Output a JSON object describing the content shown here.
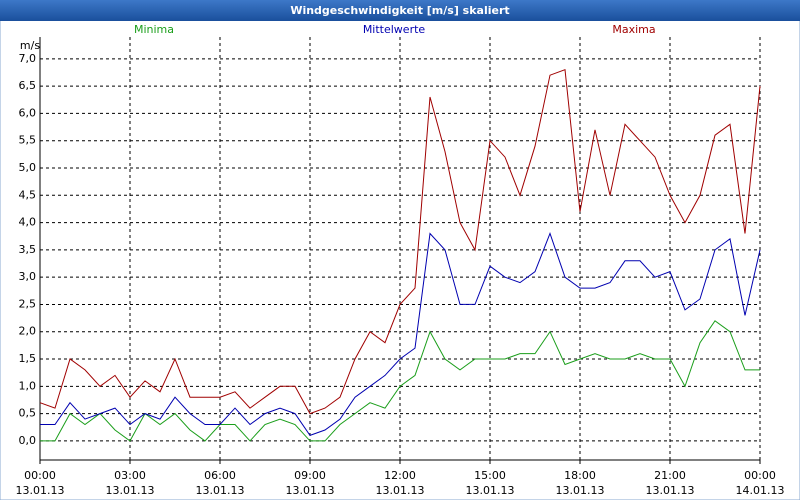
{
  "chart_data": {
    "type": "line",
    "title": "Windgeschwindigkeit [m/s] skaliert",
    "y_unit": "m/s",
    "x": [
      0,
      0.5,
      1,
      1.5,
      2,
      2.5,
      3,
      3.5,
      4,
      4.5,
      5,
      5.5,
      6,
      6.5,
      7,
      7.5,
      8,
      8.5,
      9,
      9.5,
      10,
      10.5,
      11,
      11.5,
      12,
      12.5,
      13,
      13.5,
      14,
      14.5,
      15,
      15.5,
      16,
      16.5,
      17,
      17.5,
      18,
      18.5,
      19,
      19.5,
      20,
      20.5,
      21,
      21.5,
      22,
      22.5,
      23,
      23.5,
      24
    ],
    "series": [
      {
        "name": "Minima",
        "color": "#1a9e1a",
        "values": [
          0.0,
          0.0,
          0.5,
          0.3,
          0.5,
          0.2,
          0.0,
          0.5,
          0.3,
          0.5,
          0.2,
          0.0,
          0.3,
          0.3,
          0.0,
          0.3,
          0.4,
          0.3,
          0.0,
          0.0,
          0.3,
          0.5,
          0.7,
          0.6,
          1.0,
          1.2,
          2.0,
          1.5,
          1.3,
          1.5,
          1.5,
          1.5,
          1.6,
          1.6,
          2.0,
          1.4,
          1.5,
          1.6,
          1.5,
          1.5,
          1.6,
          1.5,
          1.5,
          1.0,
          1.8,
          2.2,
          2.0,
          1.3,
          1.3
        ]
      },
      {
        "name": "Mittelwerte",
        "color": "#0000b0",
        "values": [
          0.3,
          0.3,
          0.7,
          0.4,
          0.5,
          0.6,
          0.3,
          0.5,
          0.4,
          0.8,
          0.5,
          0.3,
          0.3,
          0.6,
          0.3,
          0.5,
          0.6,
          0.5,
          0.1,
          0.2,
          0.4,
          0.8,
          1.0,
          1.2,
          1.5,
          1.7,
          3.8,
          3.5,
          2.5,
          2.5,
          3.2,
          3.0,
          2.9,
          3.1,
          3.8,
          3.0,
          2.8,
          2.8,
          2.9,
          3.3,
          3.3,
          3.0,
          3.1,
          2.4,
          2.6,
          3.5,
          3.7,
          2.3,
          3.5
        ]
      },
      {
        "name": "Maxima",
        "color": "#a00000",
        "values": [
          0.7,
          0.6,
          1.5,
          1.3,
          1.0,
          1.2,
          0.8,
          1.1,
          0.9,
          1.5,
          0.8,
          0.8,
          0.8,
          0.9,
          0.6,
          0.8,
          1.0,
          1.0,
          0.5,
          0.6,
          0.8,
          1.5,
          2.0,
          1.8,
          2.5,
          2.8,
          6.3,
          5.3,
          4.0,
          3.5,
          5.5,
          5.2,
          4.5,
          5.4,
          6.7,
          6.8,
          4.2,
          5.7,
          4.5,
          5.8,
          5.5,
          5.2,
          4.5,
          4.0,
          4.5,
          5.6,
          5.8,
          3.8,
          6.5
        ]
      }
    ],
    "xlim": [
      0,
      24
    ],
    "xticks": [
      {
        "value": 0,
        "label": "00:00"
      },
      {
        "value": 3,
        "label": "03:00"
      },
      {
        "value": 6,
        "label": "06:00"
      },
      {
        "value": 9,
        "label": "09:00"
      },
      {
        "value": 12,
        "label": "12:00"
      },
      {
        "value": 15,
        "label": "15:00"
      },
      {
        "value": 18,
        "label": "18:00"
      },
      {
        "value": 21,
        "label": "21:00"
      },
      {
        "value": 24,
        "label": "00:00"
      }
    ],
    "xtick_dates": [
      "13.01.13",
      "13.01.13",
      "13.01.13",
      "13.01.13",
      "13.01.13",
      "13.01.13",
      "13.01.13",
      "13.01.13",
      "14.01.13"
    ],
    "ylim": [
      -0.35,
      7.4
    ],
    "yticks": [
      {
        "value": 0,
        "label": "0,0"
      },
      {
        "value": 0.5,
        "label": "0,5"
      },
      {
        "value": 1,
        "label": "1,0"
      },
      {
        "value": 1.5,
        "label": "1,5"
      },
      {
        "value": 2,
        "label": "2,0"
      },
      {
        "value": 2.5,
        "label": "2,5"
      },
      {
        "value": 3,
        "label": "3,0"
      },
      {
        "value": 3.5,
        "label": "3,5"
      },
      {
        "value": 4,
        "label": "4,0"
      },
      {
        "value": 4.5,
        "label": "4,5"
      },
      {
        "value": 5,
        "label": "5,0"
      },
      {
        "value": 5.5,
        "label": "5,5"
      },
      {
        "value": 6,
        "label": "6,0"
      },
      {
        "value": 6.5,
        "label": "6,5"
      },
      {
        "value": 7,
        "label": "7,0"
      }
    ],
    "grid": true
  }
}
